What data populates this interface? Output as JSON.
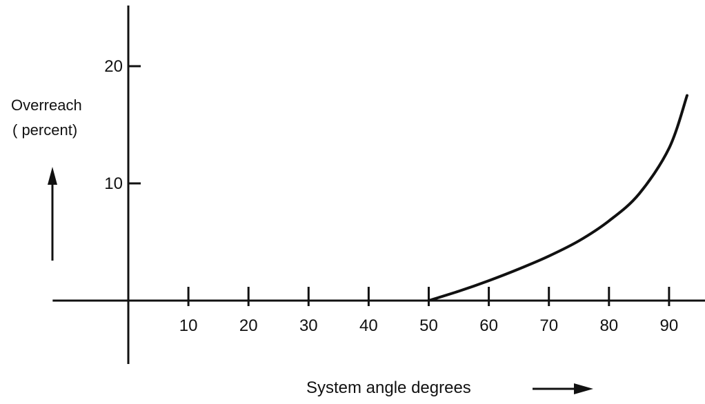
{
  "chart_data": {
    "type": "line",
    "title": "",
    "xlabel": "System angle degrees",
    "ylabel": [
      "Overreach",
      "( percent)"
    ],
    "xlim": [
      -8,
      96
    ],
    "ylim": [
      -6,
      26
    ],
    "xticks": [
      10,
      20,
      30,
      40,
      50,
      60,
      70,
      80,
      90
    ],
    "xtick_labels": [
      "10",
      "20",
      "30",
      "40",
      "50",
      "60",
      "70",
      "80",
      "90"
    ],
    "yticks": [
      10,
      20
    ],
    "ytick_labels": [
      "10",
      "20"
    ],
    "grid": false,
    "series": [
      {
        "x": [
          50,
          55,
          60,
          65,
          70,
          75,
          80,
          85,
          90,
          93
        ],
        "y": [
          0,
          0.8,
          1.7,
          2.7,
          3.8,
          5.1,
          6.8,
          9.1,
          13.0,
          17.5
        ]
      }
    ],
    "colors": {
      "ink": "#111111",
      "background": "#ffffff"
    }
  }
}
